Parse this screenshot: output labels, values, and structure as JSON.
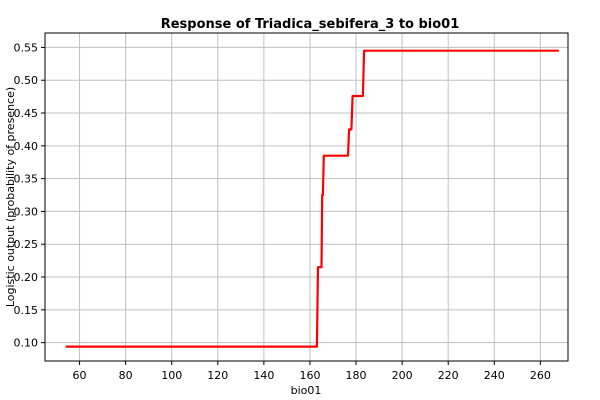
{
  "chart_data": {
    "type": "line",
    "title": "Response of Triadica_sebifera_3 to bio01",
    "xlabel": "bio01",
    "ylabel": "Logistic output (probability of presence)",
    "xlim": [
      45,
      272
    ],
    "ylim": [
      0.072,
      0.572
    ],
    "x_ticks": [
      60,
      80,
      100,
      120,
      140,
      160,
      180,
      200,
      220,
      240,
      260
    ],
    "y_ticks": [
      0.1,
      0.15,
      0.2,
      0.25,
      0.3,
      0.35,
      0.4,
      0.45,
      0.5,
      0.55
    ],
    "x_tick_labels": [
      "60",
      "80",
      "100",
      "120",
      "140",
      "160",
      "180",
      "200",
      "220",
      "240",
      "260"
    ],
    "y_tick_labels": [
      "0.10",
      "0.15",
      "0.20",
      "0.25",
      "0.30",
      "0.35",
      "0.40",
      "0.45",
      "0.50",
      "0.55"
    ],
    "grid": true,
    "line_color": "#ff0000",
    "series": [
      {
        "x": [
          54,
          162.5,
          163,
          163.5,
          165,
          165.3,
          165.6,
          166,
          176.5,
          177,
          178,
          178.5,
          183,
          183.5,
          268
        ],
        "y": [
          0.094,
          0.094,
          0.094,
          0.215,
          0.215,
          0.325,
          0.325,
          0.385,
          0.385,
          0.425,
          0.425,
          0.476,
          0.476,
          0.545,
          0.545
        ]
      }
    ]
  }
}
